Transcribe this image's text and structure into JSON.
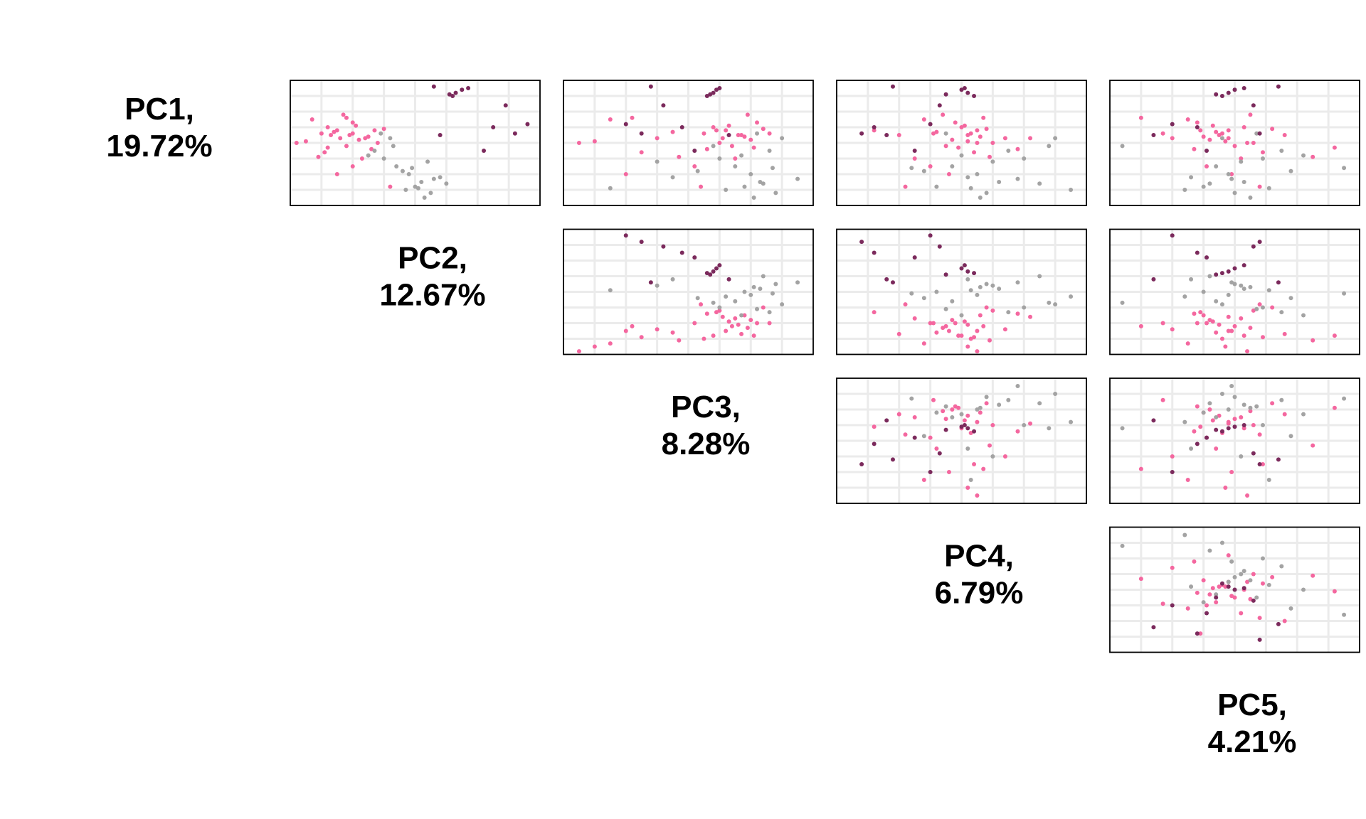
{
  "chart_data": {
    "type": "scatter-matrix",
    "components": [
      {
        "name": "PC1,",
        "variance": "19.72%"
      },
      {
        "name": "PC2,",
        "variance": "12.67%"
      },
      {
        "name": "PC3,",
        "variance": "8.28%"
      },
      {
        "name": "PC4,",
        "variance": "6.79%"
      },
      {
        "name": "PC5,",
        "variance": "4.21%"
      }
    ],
    "lim": [
      -4,
      4
    ],
    "ticks": [
      -3,
      -2,
      -1,
      0,
      1,
      2,
      3
    ],
    "grid": true,
    "series": [
      {
        "color": "#f4679f",
        "points": [
          [
            0.5,
            -2.1,
            1.6,
            0.2,
            -0.5
          ],
          [
            0.8,
            -2.5,
            1.2,
            0.5,
            -0.2
          ],
          [
            0.2,
            -1.8,
            2.0,
            -0.3,
            -0.8
          ],
          [
            1.0,
            -2.8,
            0.8,
            0.0,
            0.3
          ],
          [
            0.4,
            -1.5,
            1.8,
            0.6,
            -1.0
          ],
          [
            -0.2,
            -2.2,
            1.4,
            -0.5,
            0.0
          ],
          [
            0.6,
            -3.0,
            0.5,
            0.3,
            -0.4
          ],
          [
            1.3,
            -2.0,
            2.2,
            -0.2,
            -1.2
          ],
          [
            0.0,
            -1.2,
            1.0,
            1.0,
            0.6
          ],
          [
            0.7,
            -2.6,
            -0.5,
            -0.8,
            -0.6
          ],
          [
            -0.6,
            -2.9,
            -1.5,
            0.4,
            0.9
          ],
          [
            1.5,
            -3.3,
            -2.5,
            -1.2,
            -1.5
          ],
          [
            -1.0,
            -1.7,
            1.5,
            -1.5,
            0.2
          ],
          [
            0.3,
            -2.4,
            -1.0,
            1.4,
            -2.0
          ],
          [
            0.9,
            -1.0,
            2.4,
            0.8,
            1.2
          ],
          [
            -1.5,
            -2.0,
            0.2,
            -1.0,
            -0.9
          ],
          [
            0.1,
            -3.5,
            -3.0,
            0.2,
            -0.3
          ],
          [
            1.8,
            -2.3,
            1.9,
            -0.6,
            0.5
          ],
          [
            -0.4,
            -1.4,
            0.6,
            1.8,
            -1.3
          ],
          [
            0.5,
            -2.7,
            1.7,
            -2.0,
            1.6
          ],
          [
            -2.0,
            -2.5,
            -2.0,
            -0.4,
            -0.1
          ],
          [
            1.1,
            -1.9,
            1.3,
            0.1,
            -0.7
          ],
          [
            -0.9,
            -3.1,
            -0.3,
            0.9,
            2.5
          ],
          [
            0.6,
            -2.0,
            2.6,
            -0.9,
            -2.3
          ],
          [
            -2.8,
            -0.8,
            0.4,
            -1.8,
            0.8
          ],
          [
            0.3,
            -1.6,
            1.1,
            2.2,
            -0.2
          ],
          [
            1.6,
            -2.2,
            -1.8,
            0.7,
            -3.0
          ],
          [
            -0.3,
            -2.8,
            2.1,
            -0.1,
            3.2
          ],
          [
            0.8,
            -1.3,
            0.9,
            -2.8,
            -1.1
          ],
          [
            0.0,
            -3.8,
            -3.5,
            0.5,
            0.4
          ]
        ]
      },
      {
        "color": "#a3a3a3",
        "points": [
          [
            -2.0,
            -0.2,
            2.0,
            0.5,
            -0.2
          ],
          [
            -2.5,
            0.2,
            2.3,
            1.2,
            0.3
          ],
          [
            -1.5,
            -0.6,
            1.5,
            -0.3,
            -0.6
          ],
          [
            -3.2,
            0.5,
            2.8,
            0.8,
            0.0
          ],
          [
            -1.0,
            -1.0,
            1.0,
            2.0,
            0.9
          ],
          [
            -2.8,
            0.0,
            1.8,
            -0.8,
            -1.0
          ],
          [
            -0.5,
            -1.3,
            2.6,
            1.5,
            1.5
          ],
          [
            -2.2,
            0.8,
            -0.5,
            0.2,
            -1.4
          ],
          [
            -3.5,
            0.3,
            2.1,
            0.6,
            0.5
          ],
          [
            0.3,
            -0.8,
            3.0,
            3.0,
            -0.4
          ],
          [
            -1.8,
            -0.4,
            0.3,
            -1.2,
            1.8
          ],
          [
            -2.6,
            1.0,
            2.4,
            2.5,
            -0.8
          ],
          [
            -0.8,
            -1.5,
            1.7,
            0.0,
            2.2
          ],
          [
            -1.2,
            0.4,
            -1.0,
            1.0,
            0.2
          ],
          [
            -3.0,
            -0.3,
            1.2,
            3.5,
            -1.6
          ],
          [
            0.6,
            -1.1,
            2.2,
            -0.5,
            0.7
          ],
          [
            -2.3,
            0.6,
            3.5,
            1.8,
            -0.1
          ],
          [
            -1.6,
            -0.1,
            2.7,
            -1.6,
            3.5
          ],
          [
            -0.2,
            -0.7,
            0.8,
            2.8,
            -3.6
          ],
          [
            -2.9,
            0.1,
            -2.5,
            0.3,
            1.1
          ]
        ]
      },
      {
        "color": "#7b2a5c",
        "points": [
          [
            3.2,
            1.3,
            0.8,
            0.2,
            -0.2
          ],
          [
            3.4,
            1.5,
            0.9,
            0.0,
            0.0
          ],
          [
            3.0,
            1.2,
            0.6,
            0.4,
            -0.4
          ],
          [
            3.5,
            1.7,
            1.0,
            0.1,
            0.3
          ],
          [
            3.1,
            1.1,
            0.7,
            -0.5,
            -0.6
          ],
          [
            1.0,
            2.5,
            -0.2,
            -2.8,
            -1.2
          ],
          [
            0.6,
            3.2,
            -1.5,
            -3.2,
            0.8
          ],
          [
            1.2,
            3.6,
            -2.0,
            -1.0,
            -2.0
          ],
          [
            3.6,
            0.6,
            -1.2,
            -2.2,
            1.4
          ],
          [
            -0.5,
            2.2,
            0.2,
            -1.5,
            -0.9
          ],
          [
            0.5,
            0.8,
            1.3,
            -2.4,
            -2.6
          ],
          [
            2.4,
            2.9,
            -0.8,
            -0.7,
            0.6
          ]
        ]
      }
    ]
  }
}
